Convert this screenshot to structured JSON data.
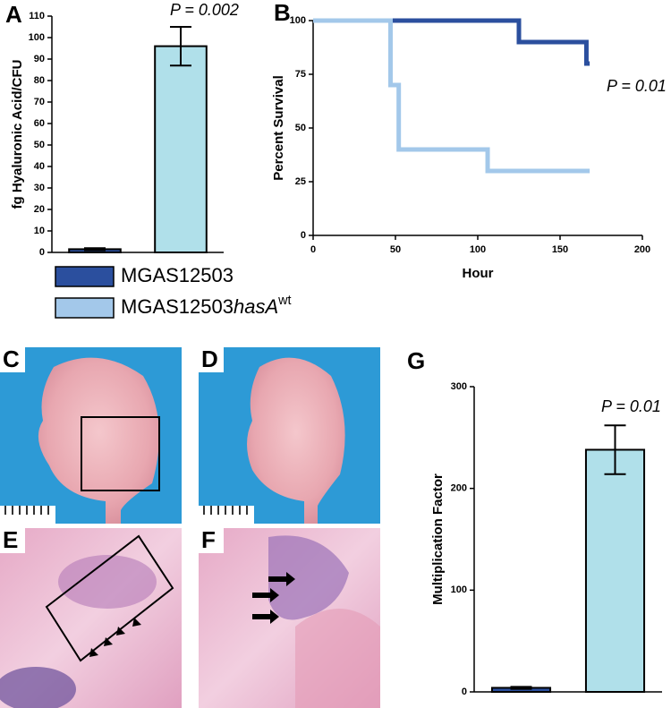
{
  "chart_data": [
    {
      "type": "bar",
      "panel": "A",
      "ylabel": "fg Hyaluronic Acid/CFU",
      "annotation": [
        "P",
        " = 0.002"
      ],
      "categories": [
        null,
        null
      ],
      "values": [
        1.5,
        96
      ],
      "errors": [
        0.5,
        9
      ],
      "colors": [
        "#2b4f9e",
        "#b0e0ea"
      ],
      "ylim": [
        0,
        110
      ],
      "yticks": [
        0,
        10,
        20,
        30,
        40,
        50,
        60,
        70,
        80,
        90,
        100,
        110
      ]
    },
    {
      "type": "line",
      "panel": "B",
      "xlabel": "Hour",
      "ylabel": "Percent Survival",
      "annotation": [
        "P",
        " = 0.01"
      ],
      "xlim": [
        0,
        200
      ],
      "xticks": [
        0,
        50,
        100,
        150,
        200
      ],
      "ylim": [
        0,
        100
      ],
      "yticks": [
        0,
        25,
        50,
        75,
        100
      ],
      "series": [
        {
          "name": [
            "MGAS12503"
          ],
          "color": "#2b4f9e",
          "x": [
            0,
            125,
            125,
            166,
            166,
            168
          ],
          "values": [
            100,
            100,
            90,
            90,
            80,
            80
          ]
        },
        {
          "name": [
            "MGAS12503",
            "hasA",
            "wt"
          ],
          "color": "#a3c8ea",
          "x": [
            0,
            47,
            47,
            52,
            52,
            106,
            106,
            168
          ],
          "values": [
            100,
            100,
            70,
            70,
            40,
            40,
            30,
            30
          ]
        }
      ]
    },
    {
      "type": "bar",
      "panel": "G",
      "ylabel": "Multiplication Factor",
      "annotation": [
        "P",
        " = 0.01"
      ],
      "categories": [
        null,
        null
      ],
      "values": [
        4,
        238
      ],
      "errors": [
        1,
        24
      ],
      "colors": [
        "#2b4f9e",
        "#b0e0ea"
      ],
      "ylim": [
        0,
        300
      ],
      "yticks": [
        0,
        100,
        200,
        300
      ]
    }
  ],
  "photo_panels": [
    {
      "label": "C"
    },
    {
      "label": "D"
    },
    {
      "label": "E"
    },
    {
      "label": "F"
    }
  ]
}
